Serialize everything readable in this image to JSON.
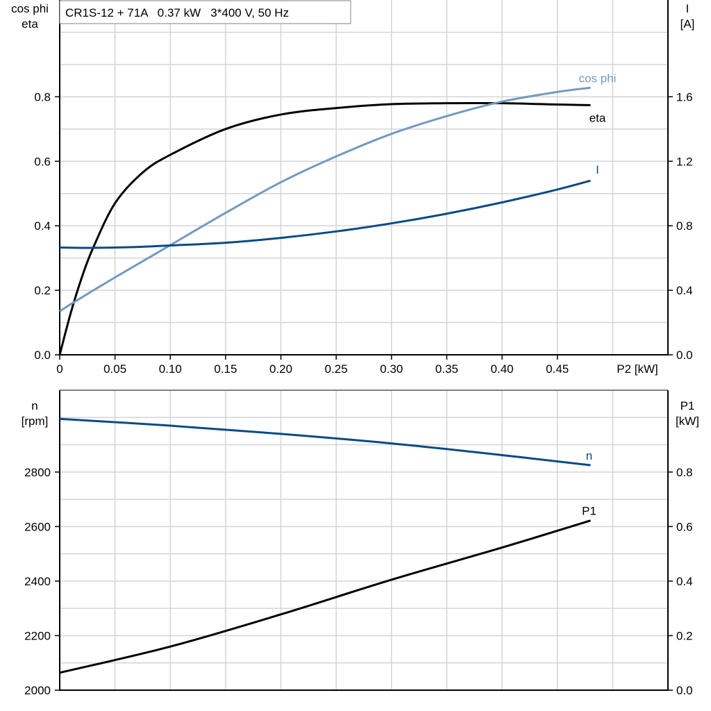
{
  "title": "CR1S-12 + 71A   0.37 kW   3*400 V, 50 Hz",
  "chart_data": [
    {
      "type": "line",
      "xlabel": "P2 [kW]",
      "ylabel_left": [
        "cos phi",
        "eta"
      ],
      "ylabel_right": [
        "I",
        "[A]"
      ],
      "xlim": [
        0,
        0.55
      ],
      "ylim_left": [
        0,
        1.1
      ],
      "ylim_right": [
        0,
        2.2
      ],
      "xticks": [
        "0",
        "0.05",
        "0.10",
        "0.15",
        "0.20",
        "0.25",
        "0.30",
        "0.35",
        "0.40",
        "0.45"
      ],
      "xtick_values": [
        0,
        0.05,
        0.1,
        0.15,
        0.2,
        0.25,
        0.3,
        0.35,
        0.4,
        0.45
      ],
      "yticks_left": [
        "0.0",
        "0.2",
        "0.4",
        "0.6",
        "0.8"
      ],
      "ytick_left_values": [
        0,
        0.2,
        0.4,
        0.6,
        0.8
      ],
      "yticks_right": [
        "0.0",
        "0.4",
        "0.8",
        "1.2",
        "1.6"
      ],
      "ytick_right_values": [
        0,
        0.4,
        0.8,
        1.2,
        1.6
      ],
      "grid": true,
      "x": [
        0,
        0.01,
        0.02,
        0.03,
        0.05,
        0.075,
        0.1,
        0.15,
        0.2,
        0.25,
        0.3,
        0.35,
        0.4,
        0.45,
        0.48
      ],
      "series": [
        {
          "name": "eta",
          "axis": "left",
          "color": "#000000",
          "values": [
            0,
            0.13,
            0.24,
            0.33,
            0.47,
            0.565,
            0.62,
            0.7,
            0.745,
            0.765,
            0.777,
            0.78,
            0.78,
            0.776,
            0.774
          ]
        },
        {
          "name": "cos phi",
          "axis": "left",
          "color": "#7399bf",
          "values": [
            0.135,
            0.157,
            0.178,
            0.199,
            0.24,
            0.29,
            0.34,
            0.44,
            0.535,
            0.615,
            0.685,
            0.74,
            0.785,
            0.815,
            0.828
          ]
        },
        {
          "name": "I",
          "axis": "right",
          "color": "#0a4a85",
          "values": [
            0.665,
            0.664,
            0.663,
            0.663,
            0.665,
            0.67,
            0.678,
            0.695,
            0.725,
            0.765,
            0.815,
            0.875,
            0.945,
            1.025,
            1.08
          ]
        }
      ]
    },
    {
      "type": "line",
      "ylabel_left": [
        "n",
        "[rpm]"
      ],
      "ylabel_right": [
        "P1",
        "[kW]"
      ],
      "xlim": [
        0,
        0.55
      ],
      "ylim_left": [
        2000,
        3100
      ],
      "ylim_right": [
        0,
        1.1
      ],
      "yticks_left": [
        "2000",
        "2200",
        "2400",
        "2600",
        "2800"
      ],
      "ytick_left_values": [
        2000,
        2200,
        2400,
        2600,
        2800
      ],
      "yticks_right": [
        "0.0",
        "0.2",
        "0.4",
        "0.6",
        "0.8"
      ],
      "ytick_right_values": [
        0,
        0.2,
        0.4,
        0.6,
        0.8
      ],
      "grid": true,
      "x": [
        0,
        0.1,
        0.2,
        0.3,
        0.4,
        0.48
      ],
      "series": [
        {
          "name": "n",
          "axis": "left",
          "color": "#0a4a85",
          "values": [
            2995,
            2970,
            2940,
            2905,
            2862,
            2825
          ]
        },
        {
          "name": "P1",
          "axis": "right",
          "color": "#000000",
          "values": [
            0.064,
            0.16,
            0.278,
            0.405,
            0.523,
            0.622
          ]
        }
      ]
    }
  ]
}
